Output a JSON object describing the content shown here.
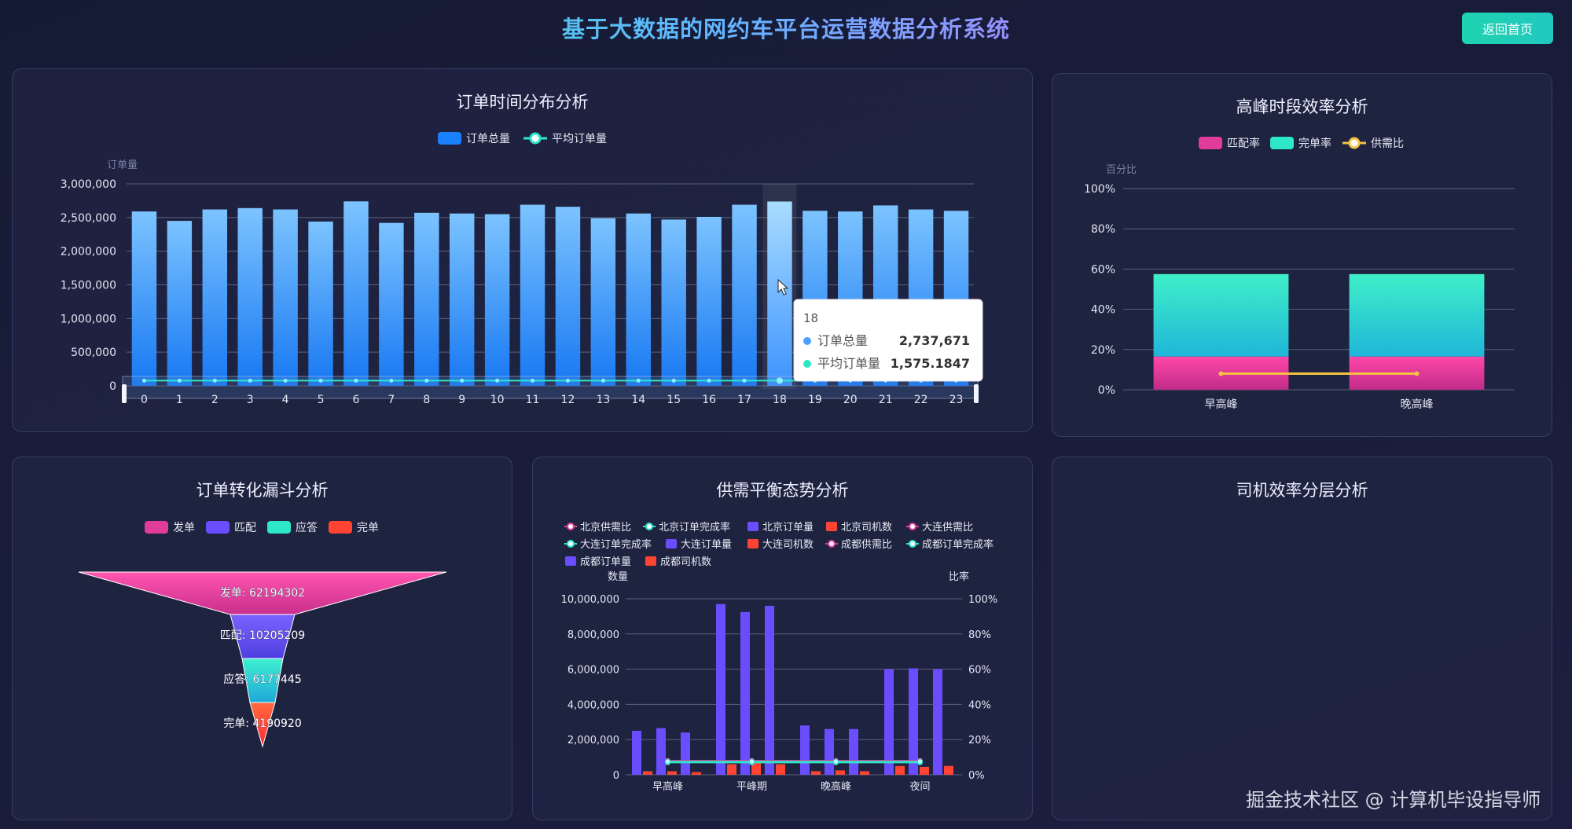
{
  "header": {
    "title": "基于大数据的网约车平台运营数据分析系统",
    "home_button": "返回首页"
  },
  "panels": {
    "time": {
      "title": "订单时间分布分析",
      "legend": [
        "订单总量",
        "平均订单量"
      ]
    },
    "peak": {
      "title": "高峰时段效率分析",
      "legend": [
        "匹配率",
        "完单率",
        "供需比"
      ]
    },
    "funnel": {
      "title": "订单转化漏斗分析",
      "legend": [
        "发单",
        "匹配",
        "应答",
        "完单"
      ]
    },
    "balance": {
      "title": "供需平衡态势分析",
      "legend": [
        "北京供需比",
        "北京订单完成率",
        "北京订单量",
        "北京司机数",
        "大连供需比",
        "大连订单完成率",
        "大连订单量",
        "大连司机数",
        "成都供需比",
        "成都订单完成率",
        "成都订单量",
        "成都司机数"
      ]
    },
    "driver": {
      "title": "司机效率分层分析"
    }
  },
  "tooltip": {
    "title": "18",
    "rows": [
      {
        "label": "订单总量",
        "value": "2,737,671"
      },
      {
        "label": "平均订单量",
        "value": "1,575.1847"
      }
    ]
  },
  "watermark": "掘金技术社区 @ 计算机毕设指导师",
  "colors": {
    "bar_blue": "#1a80ff",
    "teal": "#2ee6c8",
    "pink": "#e23c9a",
    "purple": "#6a4dff",
    "red": "#ff4433",
    "gold": "#f5c242"
  },
  "chart_data": [
    {
      "type": "bar",
      "title": "订单时间分布分析",
      "ylabel": "订单量",
      "ylim": [
        0,
        3000000
      ],
      "yticks": [
        "3,000,000",
        "2,500,000",
        "2,000,000",
        "1,500,000",
        "1,000,000",
        "500,000",
        "0"
      ],
      "categories": [
        "0",
        "1",
        "2",
        "3",
        "4",
        "5",
        "6",
        "7",
        "8",
        "9",
        "10",
        "11",
        "12",
        "13",
        "14",
        "15",
        "16",
        "17",
        "18",
        "19",
        "20",
        "21",
        "22",
        "23"
      ],
      "series": [
        {
          "name": "订单总量",
          "values": [
            2590000,
            2450000,
            2620000,
            2640000,
            2620000,
            2440000,
            2740000,
            2420000,
            2570000,
            2560000,
            2550000,
            2690000,
            2660000,
            2490000,
            2560000,
            2470000,
            2510000,
            2690000,
            2737671,
            2600000,
            2590000,
            2680000,
            2620000,
            2600000
          ]
        },
        {
          "name": "平均订单量",
          "values": [
            1560,
            1480,
            1590,
            1600,
            1590,
            1470,
            1660,
            1460,
            1550,
            1540,
            1540,
            1630,
            1610,
            1500,
            1550,
            1490,
            1520,
            1630,
            1575.1847,
            1570,
            1560,
            1620,
            1590,
            1570
          ]
        }
      ]
    },
    {
      "type": "bar",
      "title": "高峰时段效率分析",
      "ylabel": "百分比",
      "ylim": [
        0,
        100
      ],
      "yticks": [
        "100%",
        "80%",
        "60%",
        "40%",
        "20%",
        "0%"
      ],
      "categories": [
        "早高峰",
        "晚高峰"
      ],
      "series": [
        {
          "name": "匹配率",
          "values": [
            16.5,
            16.5
          ]
        },
        {
          "name": "完单率",
          "values": [
            41,
            41
          ]
        },
        {
          "name": "供需比",
          "values": [
            8,
            8
          ]
        }
      ]
    },
    {
      "type": "funnel",
      "title": "订单转化漏斗分析",
      "categories": [
        "发单",
        "匹配",
        "应答",
        "完单"
      ],
      "values": [
        62194302,
        10205209,
        6177445,
        4190920
      ],
      "labels": [
        "发单: 62194302",
        "匹配: 10205209",
        "应答: 6177445",
        "完单: 4190920"
      ]
    },
    {
      "type": "bar",
      "title": "供需平衡态势分析",
      "ylabel": "数量",
      "y2label": "比率",
      "ylim": [
        0,
        10000000
      ],
      "y2lim": [
        0,
        100
      ],
      "yticks": [
        "10,000,000",
        "8,000,000",
        "6,000,000",
        "4,000,000",
        "2,000,000",
        "0"
      ],
      "y2ticks": [
        "100%",
        "80%",
        "60%",
        "40%",
        "20%",
        "0%"
      ],
      "categories": [
        "早高峰",
        "平峰期",
        "晚高峰",
        "夜间"
      ],
      "series": [
        {
          "name": "北京订单量",
          "values": [
            2500000,
            9700000,
            2800000,
            6000000
          ]
        },
        {
          "name": "北京司机数",
          "values": [
            200000,
            600000,
            200000,
            500000
          ]
        },
        {
          "name": "大连订单量",
          "values": [
            2650000,
            9250000,
            2600000,
            6050000
          ]
        },
        {
          "name": "大连司机数",
          "values": [
            200000,
            700000,
            250000,
            450000
          ]
        },
        {
          "name": "成都订单量",
          "values": [
            2400000,
            9600000,
            2600000,
            6000000
          ]
        },
        {
          "name": "成都司机数",
          "values": [
            150000,
            600000,
            200000,
            500000
          ]
        },
        {
          "name": "北京订单完成率",
          "values": [
            7,
            7,
            7,
            7
          ]
        },
        {
          "name": "大连订单完成率",
          "values": [
            7.5,
            7.5,
            7.5,
            7.5
          ]
        },
        {
          "name": "成都订单完成率",
          "values": [
            7,
            7,
            7,
            7
          ]
        },
        {
          "name": "北京供需比",
          "values": [
            8,
            8,
            8,
            8
          ]
        },
        {
          "name": "大连供需比",
          "values": [
            8,
            8,
            8,
            8
          ]
        },
        {
          "name": "成都供需比",
          "values": [
            8,
            8,
            8,
            8
          ]
        }
      ]
    }
  ]
}
